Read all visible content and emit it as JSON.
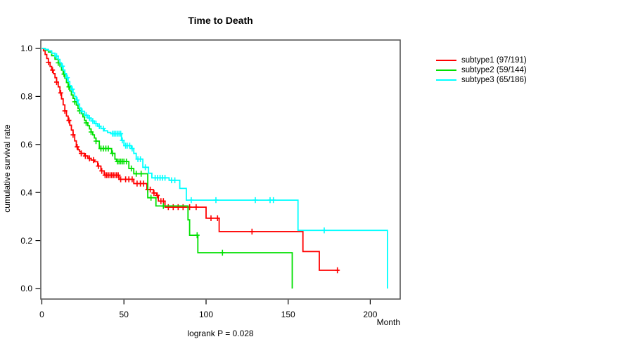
{
  "chart_data": {
    "type": "line",
    "chart_kind": "kaplan-meier-survival-step",
    "title": "Time to Death",
    "xlabel": "Month",
    "ylabel": "cumulative survival rate",
    "annotation": "logrank P = 0.028",
    "xlim": [
      0,
      219
    ],
    "ylim": [
      0.0,
      1.0
    ],
    "x_ticks": [
      0,
      50,
      100,
      150,
      200
    ],
    "y_ticks": [
      0.0,
      0.2,
      0.4,
      0.6,
      0.8,
      1.0
    ],
    "grid": false,
    "legend_position": "right-outside",
    "series": [
      {
        "id": "subtype1",
        "name": "subtype1 (97/191)",
        "events": 97,
        "n": 191,
        "color": "#ff0000",
        "end_month": 181,
        "steps": [
          [
            0,
            1
          ],
          [
            1,
            0.99
          ],
          [
            2,
            0.975
          ],
          [
            3,
            0.958
          ],
          [
            4,
            0.942
          ],
          [
            5,
            0.925
          ],
          [
            6,
            0.91
          ],
          [
            7,
            0.895
          ],
          [
            8,
            0.878
          ],
          [
            9,
            0.86
          ],
          [
            10,
            0.84
          ],
          [
            11,
            0.815
          ],
          [
            12,
            0.79
          ],
          [
            13,
            0.765
          ],
          [
            14,
            0.74
          ],
          [
            15,
            0.718
          ],
          [
            16,
            0.7
          ],
          [
            17,
            0.68
          ],
          [
            18,
            0.66
          ],
          [
            19,
            0.64
          ],
          [
            20,
            0.615
          ],
          [
            21,
            0.59
          ],
          [
            22,
            0.578
          ],
          [
            23,
            0.57
          ],
          [
            24,
            0.563
          ],
          [
            26,
            0.552
          ],
          [
            28,
            0.542
          ],
          [
            30,
            0.535
          ],
          [
            32,
            0.528
          ],
          [
            34,
            0.51
          ],
          [
            36,
            0.49
          ],
          [
            38,
            0.472
          ],
          [
            47,
            0.455
          ],
          [
            56,
            0.437
          ],
          [
            64,
            0.412
          ],
          [
            68,
            0.398
          ],
          [
            70,
            0.388
          ],
          [
            71,
            0.364
          ],
          [
            75,
            0.339
          ],
          [
            100,
            0.293
          ],
          [
            108,
            0.237
          ],
          [
            159,
            0.154
          ],
          [
            169,
            0.076
          ]
        ],
        "censor_months": [
          4,
          6.5,
          9,
          11.5,
          14,
          16.5,
          19,
          21.5,
          24,
          26.5,
          29,
          31.5,
          34.5,
          36.5,
          38.5,
          39.5,
          40.5,
          41.5,
          42.5,
          43.5,
          44.5,
          45.5,
          46.5,
          48,
          51,
          53,
          55,
          58,
          60,
          62,
          64.5,
          66,
          68.3,
          70.3,
          72.5,
          74,
          77,
          80,
          83,
          86,
          90,
          94,
          103,
          107,
          128,
          180
        ]
      },
      {
        "id": "subtype2",
        "name": "subtype2 (59/144)",
        "events": 59,
        "n": 144,
        "color": "#00e000",
        "end_month": 152.5,
        "steps": [
          [
            0,
            1
          ],
          [
            2,
            0.993
          ],
          [
            4,
            0.985
          ],
          [
            6,
            0.97
          ],
          [
            8,
            0.955
          ],
          [
            10,
            0.94
          ],
          [
            11,
            0.925
          ],
          [
            12,
            0.91
          ],
          [
            13,
            0.893
          ],
          [
            14,
            0.876
          ],
          [
            15,
            0.858
          ],
          [
            16,
            0.84
          ],
          [
            17,
            0.823
          ],
          [
            18,
            0.806
          ],
          [
            19,
            0.792
          ],
          [
            20,
            0.778
          ],
          [
            21,
            0.764
          ],
          [
            22,
            0.75
          ],
          [
            23,
            0.74
          ],
          [
            24,
            0.728
          ],
          [
            25,
            0.715
          ],
          [
            26,
            0.7
          ],
          [
            27,
            0.69
          ],
          [
            28,
            0.678
          ],
          [
            29,
            0.665
          ],
          [
            30,
            0.652
          ],
          [
            31,
            0.64
          ],
          [
            32,
            0.627
          ],
          [
            33,
            0.614
          ],
          [
            35,
            0.583
          ],
          [
            42.5,
            0.563
          ],
          [
            44.5,
            0.539
          ],
          [
            45.5,
            0.529
          ],
          [
            53,
            0.5
          ],
          [
            56,
            0.478
          ],
          [
            64.5,
            0.378
          ],
          [
            69.5,
            0.344
          ],
          [
            89,
            0.286
          ],
          [
            90,
            0.222
          ],
          [
            95,
            0.149
          ],
          [
            152.5,
            0
          ]
        ],
        "censor_months": [
          10,
          13.5,
          16.5,
          20,
          23,
          27,
          30,
          33,
          36,
          37.5,
          39,
          40.5,
          43,
          46,
          47,
          48,
          49,
          50,
          51.5,
          54.5,
          57.5,
          60.5,
          66.5,
          74,
          94.6,
          110
        ]
      },
      {
        "id": "subtype3",
        "name": "subtype3 (65/186)",
        "events": 65,
        "n": 186,
        "color": "#00ffff",
        "end_month": 210.5,
        "steps": [
          [
            0,
            1
          ],
          [
            2,
            0.996
          ],
          [
            4,
            0.99
          ],
          [
            6,
            0.98
          ],
          [
            8,
            0.968
          ],
          [
            10,
            0.954
          ],
          [
            11,
            0.94
          ],
          [
            12,
            0.926
          ],
          [
            13,
            0.91
          ],
          [
            14,
            0.895
          ],
          [
            15,
            0.878
          ],
          [
            16,
            0.862
          ],
          [
            17,
            0.845
          ],
          [
            18,
            0.83
          ],
          [
            19,
            0.815
          ],
          [
            20,
            0.8
          ],
          [
            21,
            0.785
          ],
          [
            22,
            0.768
          ],
          [
            23,
            0.752
          ],
          [
            24,
            0.738
          ],
          [
            26,
            0.722
          ],
          [
            28,
            0.71
          ],
          [
            30,
            0.698
          ],
          [
            32,
            0.687
          ],
          [
            34,
            0.676
          ],
          [
            36,
            0.666
          ],
          [
            38,
            0.657
          ],
          [
            40,
            0.65
          ],
          [
            42,
            0.645
          ],
          [
            48.5,
            0.617
          ],
          [
            50,
            0.595
          ],
          [
            54.5,
            0.583
          ],
          [
            56,
            0.563
          ],
          [
            57.5,
            0.539
          ],
          [
            61.5,
            0.505
          ],
          [
            65,
            0.48
          ],
          [
            67,
            0.461
          ],
          [
            77.5,
            0.451
          ],
          [
            84,
            0.417
          ],
          [
            88,
            0.368
          ],
          [
            156,
            0.242
          ],
          [
            210.5,
            0
          ]
        ],
        "censor_months": [
          9,
          12.5,
          15.5,
          18.5,
          21.5,
          24.5,
          27,
          29,
          31,
          33,
          35,
          37.5,
          43,
          44,
          45,
          46,
          47,
          48,
          49,
          51,
          52,
          53.5,
          55,
          58.5,
          60,
          63,
          69,
          70.5,
          72,
          73.5,
          75,
          79,
          81,
          91,
          106,
          130,
          139,
          141,
          172
        ]
      }
    ]
  }
}
